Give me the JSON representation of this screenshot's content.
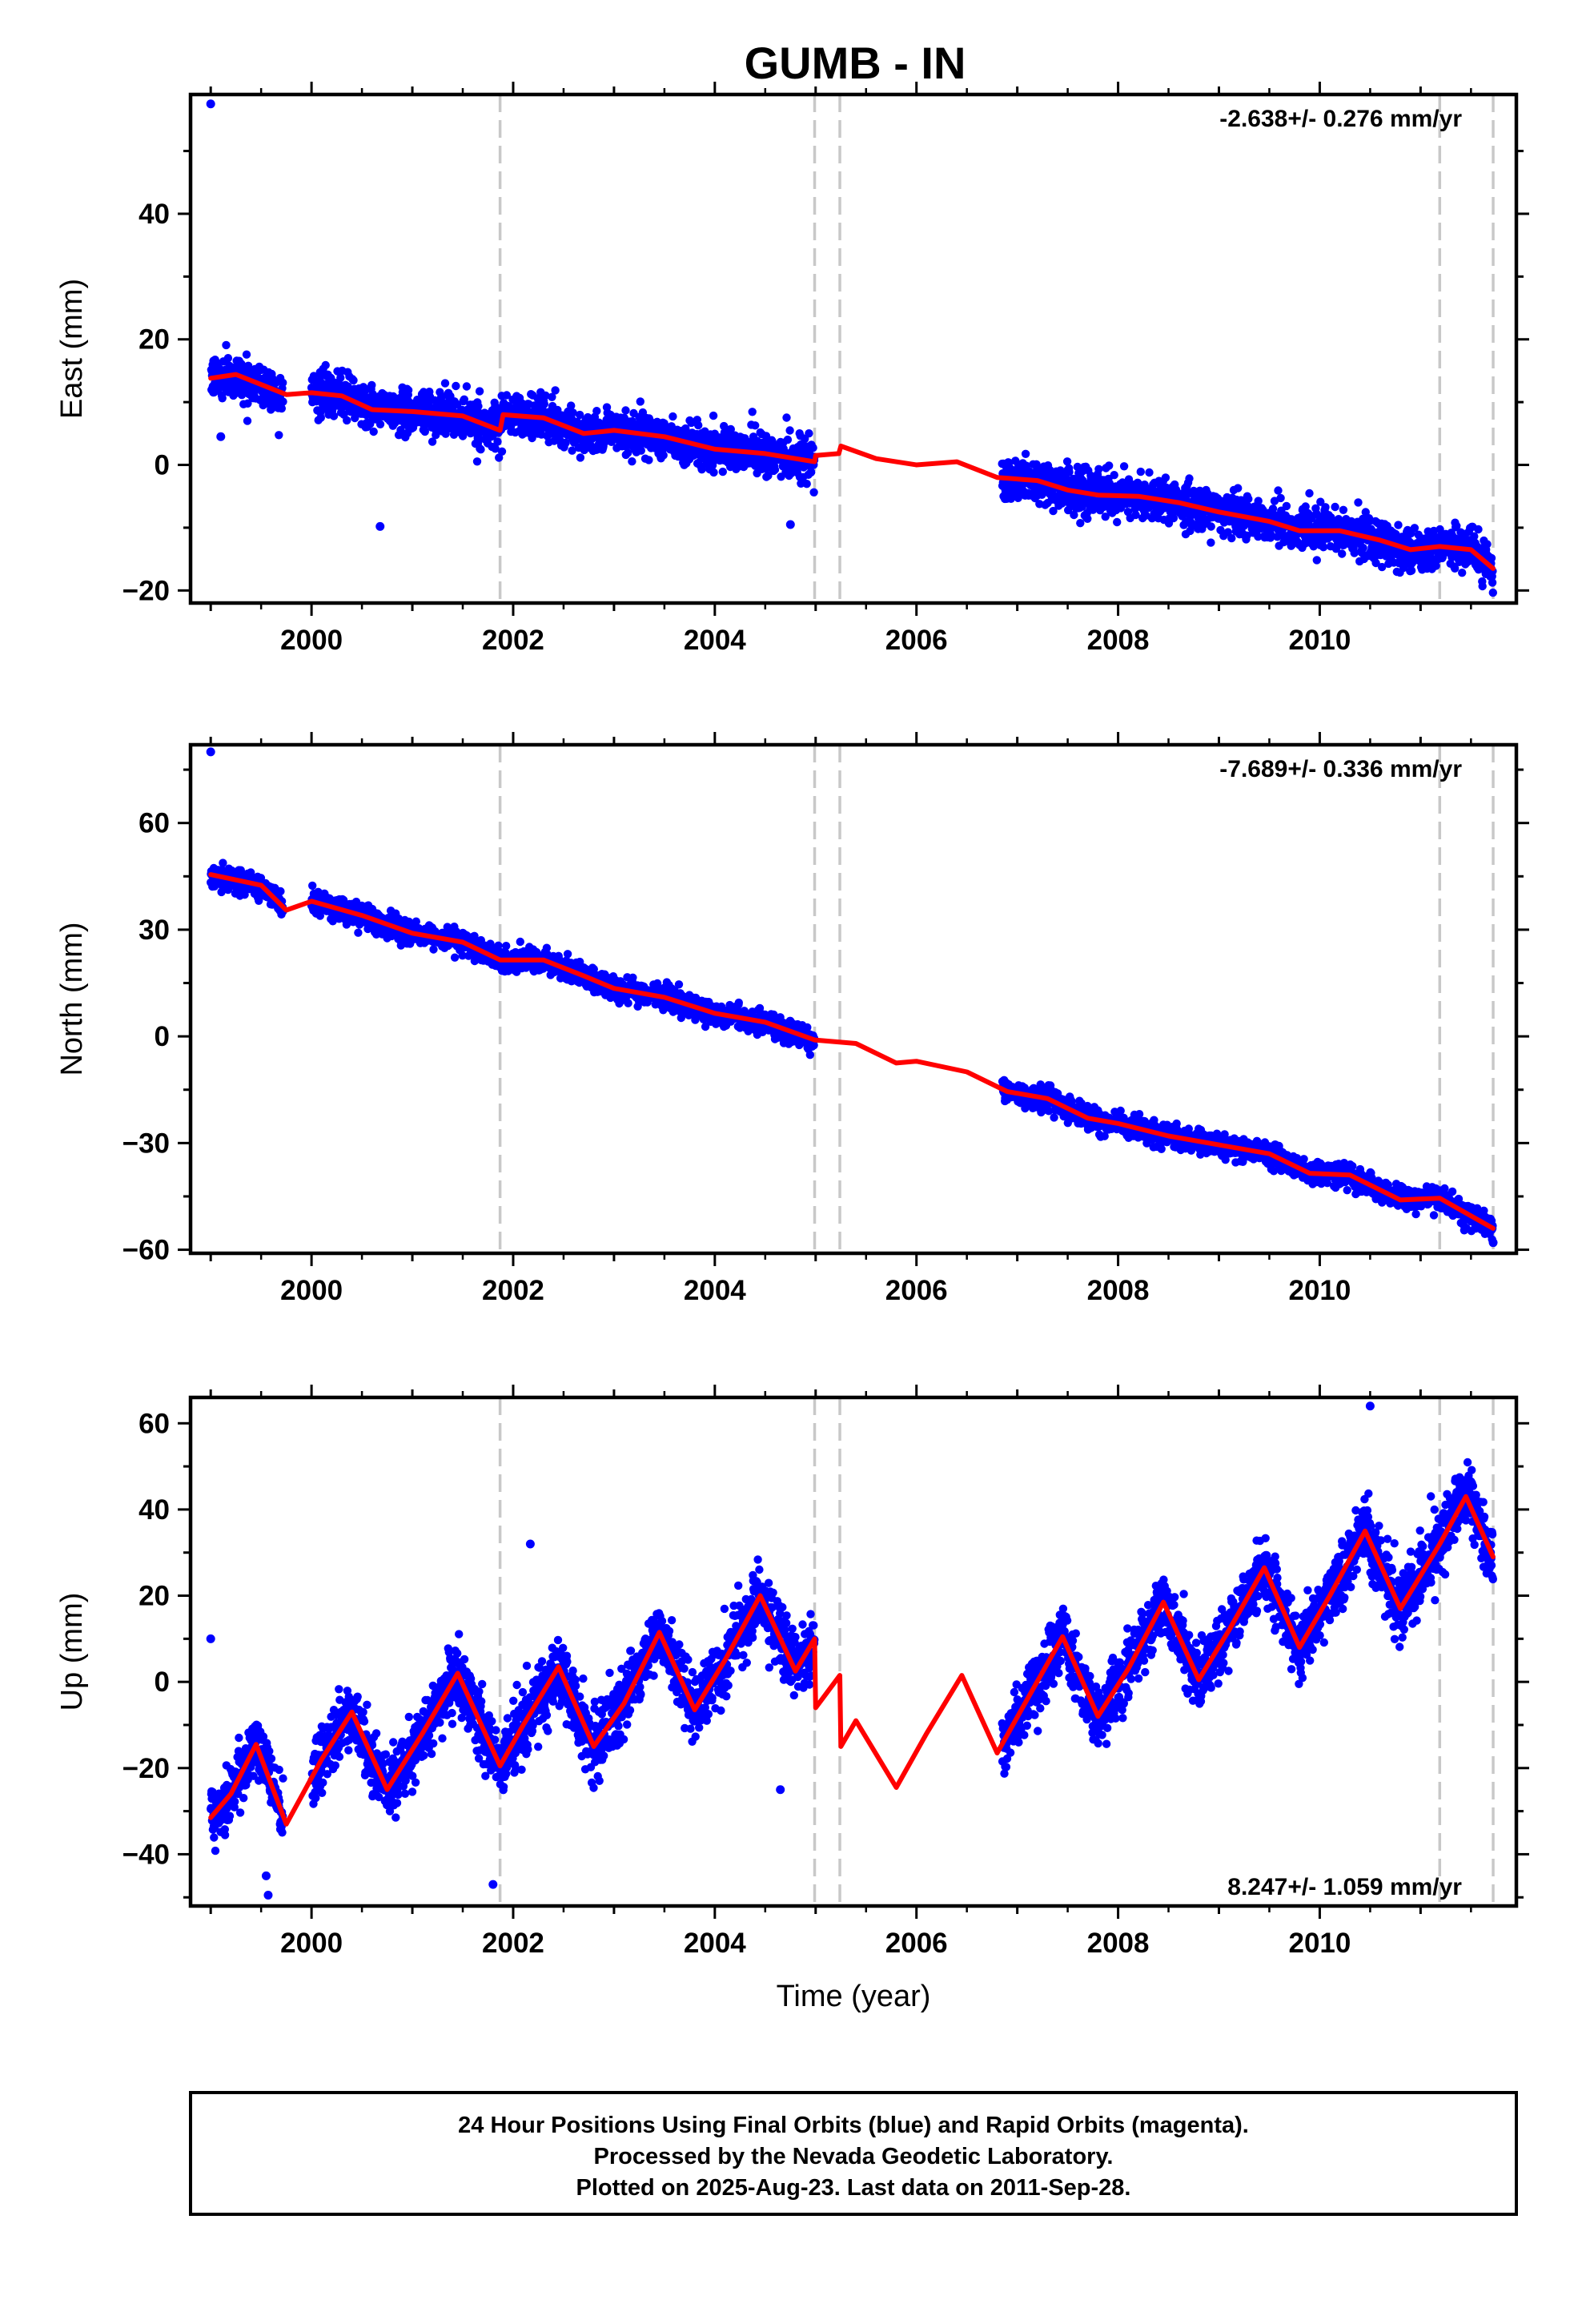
{
  "title": "GUMB - IN",
  "colors": {
    "data": "#0000ff",
    "model": "#ff0000",
    "offset_line": "#c8c8c8",
    "frame": "#000000"
  },
  "offsets": [
    2001.87,
    2004.99,
    2005.24,
    2011.19,
    2011.72
  ],
  "chart_data": [
    {
      "type": "scatter",
      "component": "east",
      "ylabel": "East (mm)",
      "xlim": [
        1998.8,
        2011.95
      ],
      "ylim": [
        -22,
        59
      ],
      "xticks": [
        2000,
        2002,
        2004,
        2006,
        2008,
        2010
      ],
      "yticks": [
        -20,
        0,
        20,
        40
      ],
      "rate": "-2.638+/- 0.276 mm/yr",
      "rate_position": "top-right",
      "slope": -2.638,
      "intercept_2005": 1.5,
      "seasonal": {
        "amp": 0.7,
        "amp2": 0.3
      },
      "model_points": [
        [
          1999.0,
          13.8
        ],
        [
          1999.25,
          14.4
        ],
        [
          1999.5,
          12.8
        ],
        [
          1999.75,
          11.2
        ],
        [
          2000.0,
          11.5
        ],
        [
          2000.3,
          11.0
        ],
        [
          2000.6,
          8.8
        ],
        [
          2001.0,
          8.5
        ],
        [
          2001.5,
          7.8
        ],
        [
          2001.87,
          5.5
        ],
        [
          2001.9,
          8.0
        ],
        [
          2002.3,
          7.5
        ],
        [
          2002.7,
          5.0
        ],
        [
          2003.0,
          5.5
        ],
        [
          2003.5,
          4.5
        ],
        [
          2004.0,
          2.5
        ],
        [
          2004.5,
          1.8
        ],
        [
          2004.99,
          0.5
        ],
        [
          2005.0,
          1.5
        ],
        [
          2005.23,
          1.8
        ],
        [
          2005.25,
          3.0
        ],
        [
          2005.6,
          1.0
        ],
        [
          2006.0,
          0.0
        ],
        [
          2006.4,
          0.5
        ],
        [
          2006.8,
          -2.0
        ],
        [
          2007.2,
          -2.5
        ],
        [
          2007.5,
          -4.0
        ],
        [
          2007.8,
          -4.8
        ],
        [
          2008.2,
          -5.0
        ],
        [
          2008.6,
          -6.0
        ],
        [
          2009.0,
          -7.5
        ],
        [
          2009.5,
          -9.0
        ],
        [
          2009.8,
          -10.5
        ],
        [
          2010.2,
          -10.5
        ],
        [
          2010.6,
          -12.0
        ],
        [
          2010.9,
          -13.5
        ],
        [
          2011.19,
          -13.0
        ],
        [
          2011.5,
          -13.5
        ],
        [
          2011.72,
          -16.5
        ]
      ],
      "data_segments": [
        [
          1999.0,
          1999.72
        ],
        [
          2000.0,
          2004.99
        ],
        [
          2006.85,
          2011.72
        ]
      ],
      "outliers": [
        [
          1999.0,
          57.5
        ],
        [
          2000.68,
          -9.8
        ],
        [
          2004.75,
          -9.5
        ],
        [
          1999.1,
          4.5
        ]
      ],
      "noise": 2.2
    },
    {
      "type": "scatter",
      "component": "north",
      "ylabel": "North (mm)",
      "xlim": [
        1998.8,
        2011.95
      ],
      "ylim": [
        -61,
        82
      ],
      "xticks": [
        2000,
        2002,
        2004,
        2006,
        2008,
        2010
      ],
      "yticks": [
        -60,
        -30,
        0,
        30,
        60
      ],
      "rate": "-7.689+/- 0.336 mm/yr",
      "rate_position": "top-right",
      "slope": -7.689,
      "intercept_2005": -1.0,
      "seasonal": {
        "amp": 1.5,
        "amp2": 0.6
      },
      "model_points": [
        [
          1999.0,
          45.5
        ],
        [
          1999.5,
          42.5
        ],
        [
          1999.75,
          35.5
        ],
        [
          2000.0,
          38.0
        ],
        [
          2000.5,
          34.0
        ],
        [
          2001.0,
          29.0
        ],
        [
          2001.5,
          26.5
        ],
        [
          2001.87,
          21.5
        ],
        [
          2002.3,
          21.5
        ],
        [
          2002.7,
          17.0
        ],
        [
          2003.0,
          13.5
        ],
        [
          2003.5,
          11.0
        ],
        [
          2004.0,
          6.5
        ],
        [
          2004.5,
          4.0
        ],
        [
          2004.99,
          -1.0
        ],
        [
          2005.4,
          -2.0
        ],
        [
          2005.8,
          -7.5
        ],
        [
          2006.0,
          -7.0
        ],
        [
          2006.5,
          -10.0
        ],
        [
          2006.9,
          -15.5
        ],
        [
          2007.3,
          -17.5
        ],
        [
          2007.7,
          -23.0
        ],
        [
          2008.0,
          -24.5
        ],
        [
          2008.5,
          -28.0
        ],
        [
          2009.0,
          -30.5
        ],
        [
          2009.5,
          -33.0
        ],
        [
          2009.9,
          -38.5
        ],
        [
          2010.3,
          -39.0
        ],
        [
          2010.8,
          -46.0
        ],
        [
          2011.19,
          -45.5
        ],
        [
          2011.72,
          -54.0
        ]
      ],
      "data_segments": [
        [
          1999.0,
          1999.72
        ],
        [
          2000.0,
          2004.99
        ],
        [
          2006.85,
          2011.72
        ]
      ],
      "outliers": [
        [
          1999.0,
          80.0
        ],
        [
          2011.72,
          -58.0
        ]
      ],
      "noise": 2.0
    },
    {
      "type": "scatter",
      "component": "up",
      "ylabel": "Up (mm)",
      "xlabel": "Time (year)",
      "xlim": [
        1998.8,
        2011.95
      ],
      "ylim": [
        -52,
        66
      ],
      "xticks": [
        2000,
        2002,
        2004,
        2006,
        2008,
        2010
      ],
      "yticks": [
        -40,
        -20,
        0,
        20,
        40,
        60
      ],
      "rate": "8.247+/- 1.059 mm/yr",
      "rate_position": "bottom-right",
      "slope": 8.247,
      "intercept_2005": -3.0,
      "seasonal": {
        "amp": 15.0,
        "amp2": 4.0
      },
      "model_points": [
        [
          1999.0,
          -31.5
        ],
        [
          1999.2,
          -26.0
        ],
        [
          1999.45,
          -14.5
        ],
        [
          1999.75,
          -33.0
        ],
        [
          2000.1,
          -18.0
        ],
        [
          2000.4,
          -7.0
        ],
        [
          2000.75,
          -25.0
        ],
        [
          2001.1,
          -12.0
        ],
        [
          2001.45,
          2.0
        ],
        [
          2001.87,
          -19.5
        ],
        [
          2002.1,
          -10.0
        ],
        [
          2002.45,
          3.5
        ],
        [
          2002.8,
          -15.0
        ],
        [
          2003.1,
          -5.0
        ],
        [
          2003.45,
          11.5
        ],
        [
          2003.8,
          -6.5
        ],
        [
          2004.1,
          5.0
        ],
        [
          2004.45,
          20.0
        ],
        [
          2004.8,
          2.5
        ],
        [
          2004.99,
          10.0
        ],
        [
          2005.0,
          -6.0
        ],
        [
          2005.24,
          1.5
        ],
        [
          2005.25,
          -15.0
        ],
        [
          2005.4,
          -9.0
        ],
        [
          2005.8,
          -24.5
        ],
        [
          2006.1,
          -12.0
        ],
        [
          2006.45,
          1.5
        ],
        [
          2006.8,
          -16.5
        ],
        [
          2007.1,
          -4.0
        ],
        [
          2007.45,
          10.5
        ],
        [
          2007.8,
          -8.0
        ],
        [
          2008.1,
          3.0
        ],
        [
          2008.45,
          18.5
        ],
        [
          2008.8,
          0.5
        ],
        [
          2009.1,
          12.0
        ],
        [
          2009.45,
          26.5
        ],
        [
          2009.8,
          8.0
        ],
        [
          2010.1,
          20.0
        ],
        [
          2010.45,
          35.0
        ],
        [
          2010.8,
          17.0
        ],
        [
          2011.19,
          32.0
        ],
        [
          2011.45,
          43.0
        ],
        [
          2011.72,
          29.0
        ]
      ],
      "data_segments": [
        [
          1999.0,
          1999.72
        ],
        [
          2000.0,
          2004.99
        ],
        [
          2006.85,
          2011.72
        ]
      ],
      "outliers": [
        [
          2001.8,
          -47.0
        ],
        [
          2001.9,
          -17.0
        ],
        [
          2002.17,
          32.0
        ],
        [
          1999.0,
          10.0
        ],
        [
          2004.65,
          -25.0
        ],
        [
          2010.5,
          64.0
        ],
        [
          1999.57,
          -49.5
        ],
        [
          1999.55,
          -45.0
        ]
      ],
      "noise": 5.0
    }
  ],
  "footer": {
    "lines": [
      "24 Hour Positions Using Final Orbits (blue) and Rapid Orbits (magenta).",
      "Processed by the Nevada Geodetic Laboratory.",
      "Plotted on 2025-Aug-23. Last data on 2011-Sep-28."
    ]
  }
}
